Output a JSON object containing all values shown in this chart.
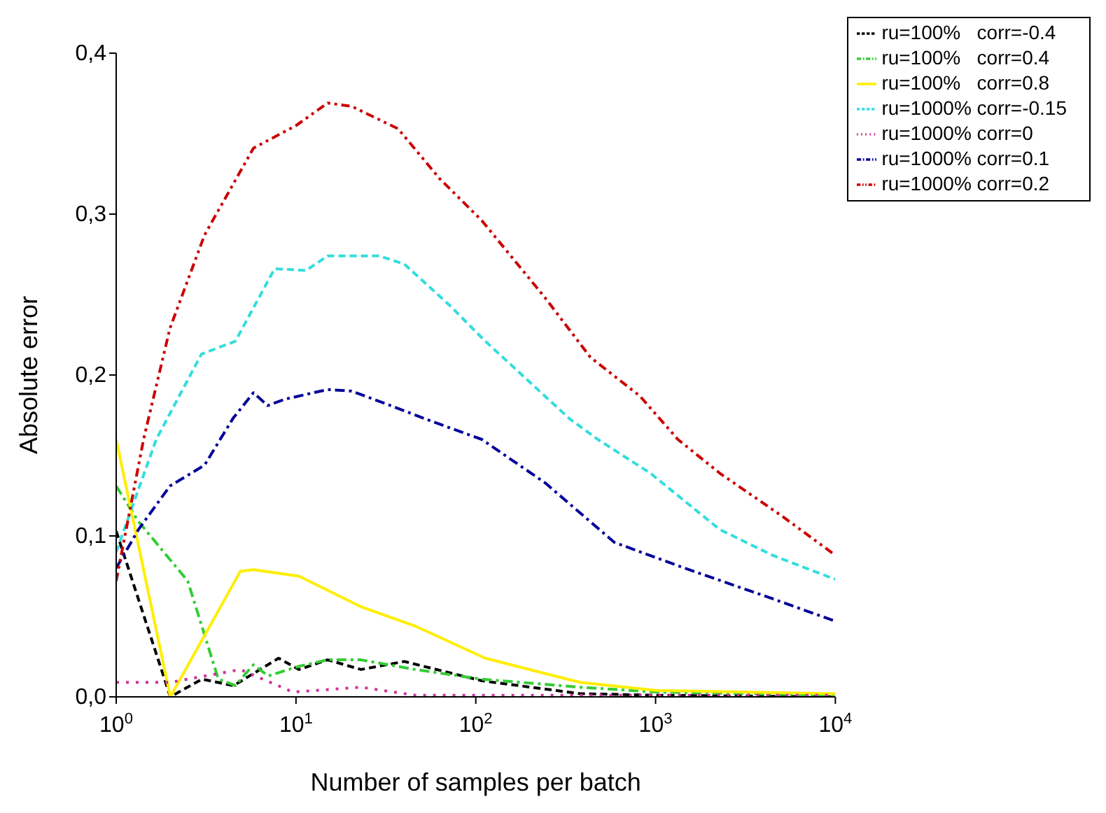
{
  "chart_data": {
    "type": "line",
    "xlabel": "Number of samples per batch",
    "ylabel": "Absolute error",
    "log": "x",
    "xlim": [
      1,
      10000
    ],
    "xticks": [
      {
        "value": 1,
        "label": "10$^{0}$"
      },
      {
        "value": 10,
        "label": "10$^{1}$"
      },
      {
        "value": 100,
        "label": "10$^{2}$"
      },
      {
        "value": 1000,
        "label": "10$^{3}$"
      },
      {
        "value": 10000,
        "label": "10$^{4}$"
      }
    ],
    "ylim": [
      0,
      0.4
    ],
    "yticks": [
      {
        "value": 0,
        "label": "0,0"
      },
      {
        "value": 0.1,
        "label": "0,1"
      },
      {
        "value": 0.2,
        "label": "0,2"
      },
      {
        "value": 0.3,
        "label": "0,3"
      },
      {
        "value": 0.4,
        "label": "0,4"
      }
    ],
    "grid": false,
    "legend": "top right",
    "series": [
      {
        "name": "ru=100%   corr=-0.4",
        "color": "#000000",
        "line_style": "dashed",
        "x": [
          1,
          2,
          3,
          4.5,
          8,
          10.4,
          15,
          23,
          40,
          108,
          380,
          1000,
          10000
        ],
        "values": [
          0.103,
          0,
          0.011,
          0.007,
          0.024,
          0.017,
          0.023,
          0.017,
          0.022,
          0.01,
          0.002,
          0.001,
          0
        ]
      },
      {
        "name": "ru=100%   corr=0.4",
        "color": "#33cc33",
        "line_style": "dashdot",
        "x": [
          1,
          1.33,
          2.5,
          3.7,
          4.6,
          5.8,
          7,
          10.4,
          15,
          23,
          46,
          108,
          380,
          1000,
          10000
        ],
        "values": [
          0.131,
          0.109,
          0.072,
          0.011,
          0.007,
          0.02,
          0.013,
          0.019,
          0.023,
          0.023,
          0.017,
          0.011,
          0.006,
          0.003,
          0.001
        ]
      },
      {
        "name": "ru=100%   corr=0.8",
        "color": "#ffee00",
        "line_style": "solid",
        "x": [
          1,
          2,
          4.9,
          5.8,
          10.4,
          23,
          46,
          113,
          380,
          1000,
          10000
        ],
        "values": [
          0.16,
          0,
          0.078,
          0.079,
          0.075,
          0.056,
          0.044,
          0.024,
          0.009,
          0.004,
          0.002
        ]
      },
      {
        "name": "ru=1000% corr=-0.15",
        "color": "#33dddd",
        "line_style": "dashed",
        "x": [
          1,
          1.67,
          2.98,
          4.6,
          7.6,
          11.4,
          15,
          29,
          40,
          72,
          113,
          331,
          477,
          935,
          2275,
          4470,
          10000
        ],
        "values": [
          0.09,
          0.16,
          0.213,
          0.221,
          0.266,
          0.265,
          0.274,
          0.274,
          0.269,
          0.243,
          0.221,
          0.173,
          0.16,
          0.139,
          0.104,
          0.088,
          0.073
        ]
      },
      {
        "name": "ru=1000% corr=0",
        "color": "#cc3399",
        "line_style": "dotted",
        "x": [
          1,
          2,
          4.9,
          9.6,
          23,
          46,
          108,
          1000,
          10000
        ],
        "values": [
          0.009,
          0.009,
          0.017,
          0.003,
          0.006,
          0.001,
          0.001,
          0.001,
          0.001
        ]
      },
      {
        "name": "ru=1000% corr=0.1",
        "color": "#000099",
        "line_style": "dashdot",
        "x": [
          1,
          1.33,
          1.99,
          3.1,
          4.46,
          5.8,
          6.95,
          8.7,
          15,
          20.4,
          33.6,
          57.6,
          108,
          243,
          590,
          1450,
          4470,
          10000
        ],
        "values": [
          0.08,
          0.104,
          0.131,
          0.144,
          0.173,
          0.189,
          0.181,
          0.185,
          0.191,
          0.19,
          0.181,
          0.171,
          0.16,
          0.133,
          0.096,
          0.08,
          0.061,
          0.047
        ]
      },
      {
        "name": "ru=1000% corr=0.2",
        "color": "#cc0000",
        "line_style": "dashdotdot",
        "x": [
          1,
          1.42,
          1.99,
          3.1,
          5.8,
          10,
          15,
          20.4,
          37,
          63,
          108,
          243,
          434,
          817,
          1330,
          2275,
          5100,
          10000
        ],
        "values": [
          0.072,
          0.16,
          0.229,
          0.287,
          0.341,
          0.355,
          0.369,
          0.367,
          0.353,
          0.322,
          0.296,
          0.248,
          0.211,
          0.187,
          0.16,
          0.139,
          0.112,
          0.088
        ]
      }
    ]
  }
}
